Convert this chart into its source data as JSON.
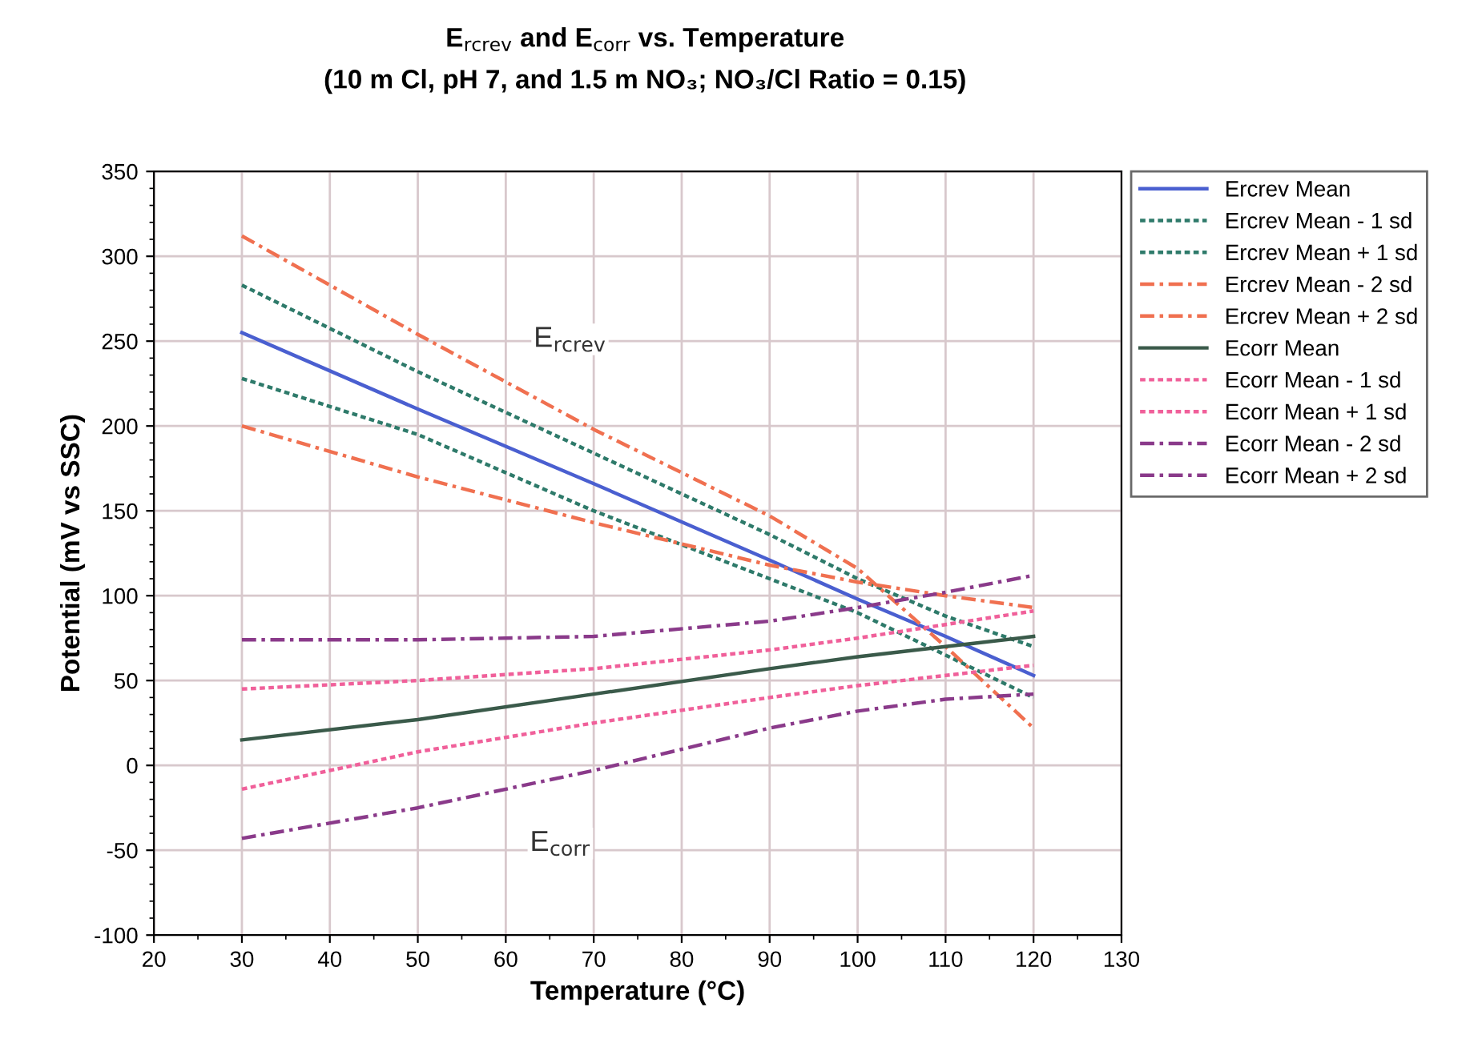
{
  "chart_data": {
    "type": "line",
    "title": "E$_{rcrev}$ and E$_{corr}$ vs. Temperature",
    "subtitle": "(10 m Cl, pH 7, and 1.5 m NO₃; NO₃/Cl Ratio = 0.15)",
    "xlabel": "Temperature (°C)",
    "ylabel": "Potential (mV vs SSC)",
    "x": [
      30,
      50,
      70,
      90,
      100,
      110,
      120
    ],
    "series": [
      {
        "name": "Ercrev Mean",
        "color": "#4a5fd0",
        "line_style": "solid",
        "values": [
          255,
          210,
          166,
          121,
          98,
          76,
          53
        ]
      },
      {
        "name": "Ercrev Mean - 1 sd",
        "color": "#2e7a6a",
        "line_style": "dotted",
        "values": [
          228,
          195,
          150,
          110,
          90,
          65,
          40
        ]
      },
      {
        "name": "Ercrev Mean + 1 sd",
        "color": "#2e7a6a",
        "line_style": "dotted",
        "values": [
          283,
          232,
          184,
          136,
          110,
          88,
          70
        ]
      },
      {
        "name": "Ercrev Mean - 2 sd",
        "color": "#f07050",
        "line_style": "dashed",
        "values": [
          200,
          170,
          143,
          118,
          108,
          100,
          93
        ]
      },
      {
        "name": "Ercrev Mean + 2 sd",
        "color": "#f07050",
        "line_style": "dashed",
        "values": [
          312,
          254,
          198,
          147,
          116,
          70,
          22
        ]
      },
      {
        "name": "Ecorr Mean",
        "color": "#3a5a4a",
        "line_style": "solid",
        "values": [
          15,
          27,
          42,
          57,
          64,
          70,
          76
        ]
      },
      {
        "name": "Ecorr Mean - 1 sd",
        "color": "#f0609a",
        "line_style": "dotted",
        "values": [
          -14,
          8,
          25,
          40,
          47,
          53,
          59
        ]
      },
      {
        "name": "Ecorr Mean + 1 sd",
        "color": "#f0609a",
        "line_style": "dotted",
        "values": [
          45,
          50,
          57,
          68,
          75,
          83,
          91
        ]
      },
      {
        "name": "Ecorr Mean - 2 sd",
        "color": "#8a3a8a",
        "line_style": "dashed",
        "values": [
          -43,
          -25,
          -3,
          22,
          32,
          39,
          42
        ]
      },
      {
        "name": "Ecorr Mean + 2 sd",
        "color": "#8a3a8a",
        "line_style": "dashed",
        "values": [
          74,
          74,
          76,
          85,
          93,
          102,
          112
        ]
      }
    ],
    "annotations": [
      "E$_{rcrev}$",
      "E$_{corr}$"
    ],
    "xlim": [
      20,
      130
    ],
    "xticks": [
      20,
      30,
      40,
      50,
      60,
      70,
      80,
      90,
      100,
      110,
      120,
      130
    ],
    "ylim": [
      -100,
      350
    ],
    "yticks": [
      -100,
      -50,
      0,
      50,
      100,
      150,
      200,
      250,
      300,
      350
    ],
    "grid": true,
    "legend": "right",
    "marker": "none"
  }
}
